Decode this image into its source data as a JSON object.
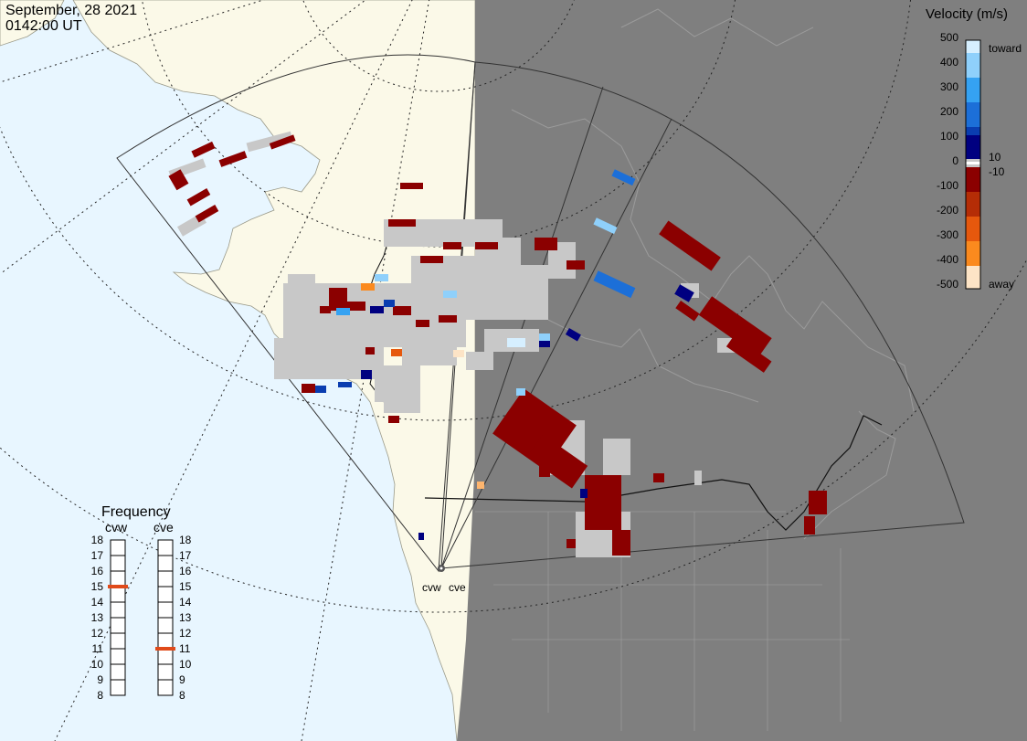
{
  "header": {
    "date": "September, 28 2021",
    "time": "0142:00 UT"
  },
  "colorbar": {
    "title": "Velocity (m/s)",
    "ticks": [
      "500",
      "400",
      "300",
      "200",
      "100",
      "0",
      "-100",
      "-200",
      "-300",
      "-400",
      "-500"
    ],
    "small_ticks": [
      "10",
      "-10"
    ],
    "toward_label": "toward",
    "away_label": "away",
    "colors": [
      "#fde4c6",
      "#fdb56e",
      "#fb8a1e",
      "#e6580d",
      "#b52d06",
      "#8b0000",
      "#8b0000",
      "#000080",
      "#0a3db0",
      "#1c6fd8",
      "#35a2f2",
      "#8fd0fb",
      "#d6efff"
    ]
  },
  "frequency": {
    "title": "Frequency",
    "radars": [
      {
        "name": "cvw",
        "value": 15
      },
      {
        "name": "cve",
        "value": 11
      }
    ],
    "scale": [
      "18",
      "17",
      "16",
      "15",
      "14",
      "13",
      "12",
      "11",
      "10",
      "9",
      "8"
    ]
  },
  "radar_labels": [
    "cvw",
    "cve"
  ],
  "colors": {
    "ocean": "#e8f6ff",
    "land": "#fbf9e8",
    "night": "#7f7f7f",
    "low_quality": "#c8c8c8",
    "red": "#8b0000"
  }
}
